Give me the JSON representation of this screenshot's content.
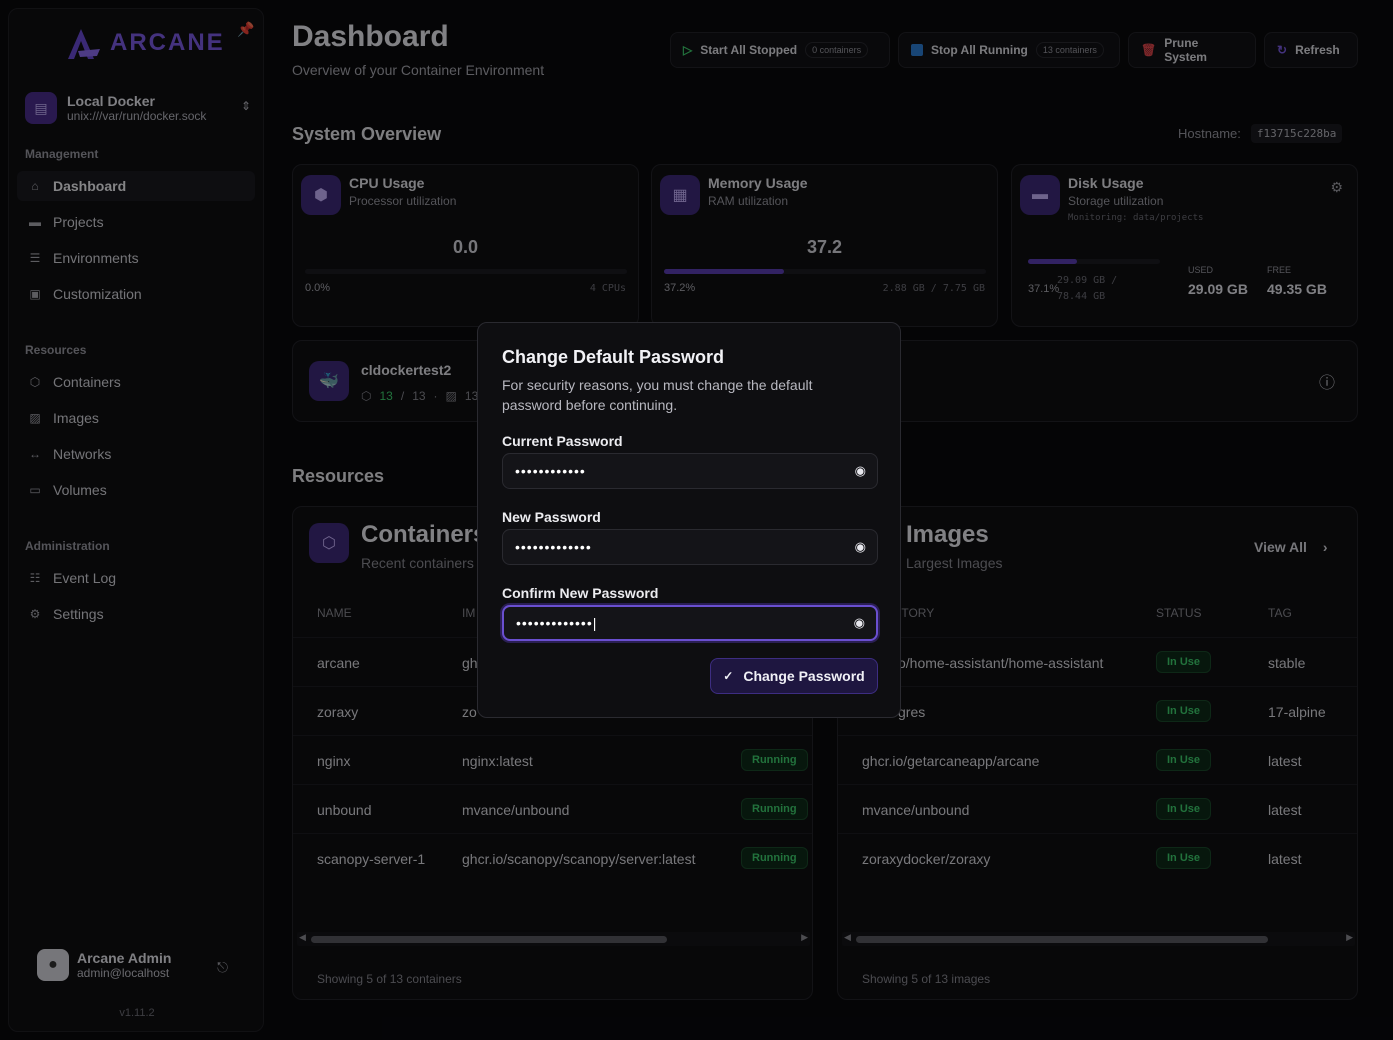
{
  "sidebar": {
    "logo_text": "ARCANE",
    "environment": {
      "name": "Local Docker",
      "path": "unix:///var/run/docker.sock"
    },
    "sections": {
      "management": "Management",
      "resources": "Resources",
      "administration": "Administration"
    },
    "management_items": [
      {
        "label": "Dashboard",
        "icon": "home-icon",
        "active": true
      },
      {
        "label": "Projects",
        "icon": "folder-icon"
      },
      {
        "label": "Environments",
        "icon": "server-icon"
      },
      {
        "label": "Customization",
        "icon": "customize-icon"
      }
    ],
    "resource_items": [
      {
        "label": "Containers",
        "icon": "container-icon"
      },
      {
        "label": "Images",
        "icon": "image-icon"
      },
      {
        "label": "Networks",
        "icon": "network-icon"
      },
      {
        "label": "Volumes",
        "icon": "volume-icon"
      }
    ],
    "admin_items": [
      {
        "label": "Event Log",
        "icon": "log-icon"
      },
      {
        "label": "Settings",
        "icon": "gear-icon"
      }
    ],
    "user": {
      "name": "Arcane Admin",
      "email": "admin@localhost"
    },
    "version": "v1.11.2"
  },
  "header": {
    "title": "Dashboard",
    "subtitle": "Overview of your Container Environment",
    "buttons": {
      "start_stopped": "Start All Stopped",
      "start_count": "0 containers",
      "stop_running": "Stop All Running",
      "stop_count": "13 containers",
      "prune": "Prune System",
      "refresh": "Refresh"
    }
  },
  "overview": {
    "title": "System Overview",
    "hostname_label": "Hostname:",
    "hostname": "f13715c228ba",
    "cpu": {
      "title": "CPU Usage",
      "subtitle": "Processor utilization",
      "value": "0.0",
      "percent_label": "0.0%",
      "detail": "4 CPUs",
      "percent": 0.0
    },
    "memory": {
      "title": "Memory Usage",
      "subtitle": "RAM utilization",
      "value": "37.2",
      "percent_label": "37.2%",
      "detail": "2.88 GB / 7.75 GB",
      "percent": 37.2
    },
    "disk": {
      "title": "Disk Usage",
      "subtitle": "Storage utilization",
      "monitoring": "Monitoring: data/projects",
      "percent_label": "37.1%",
      "detail_1": "29.09 GB /",
      "detail_2": "78.44 GB",
      "used_label": "USED",
      "used": "29.09 GB",
      "free_label": "FREE",
      "free": "49.35 GB",
      "percent": 37.1
    }
  },
  "env_card": {
    "name": "cldockertest2",
    "running": "13",
    "sep": "/",
    "total": "13",
    "dot": "·",
    "images": "13"
  },
  "resources": {
    "title": "Resources",
    "containers": {
      "title": "Containers",
      "subtitle": "Recent containers",
      "col_name": "NAME",
      "col_image": "IM",
      "rows": [
        {
          "name": "arcane",
          "image": "gh",
          "status": ""
        },
        {
          "name": "zoraxy",
          "image": "zo",
          "status": ""
        },
        {
          "name": "nginx",
          "image": "nginx:latest",
          "status": "Running"
        },
        {
          "name": "unbound",
          "image": "mvance/unbound",
          "status": "Running"
        },
        {
          "name": "scanopy-server-1",
          "image": "ghcr.io/scanopy/scanopy/server:latest",
          "status": "Running"
        }
      ],
      "footer": "Showing 5 of 13 containers"
    },
    "images": {
      "title": "Images",
      "subtitle": "Largest Images",
      "view_all": "View All",
      "col_repo": "ITORY",
      "col_status": "STATUS",
      "col_tag": "TAG",
      "rows": [
        {
          "repo": "o/home-assistant/home-assistant",
          "status": "In Use",
          "tag": "stable"
        },
        {
          "repo": "gres",
          "status": "In Use",
          "tag": "17-alpine"
        },
        {
          "repo": "ghcr.io/getarcaneapp/arcane",
          "status": "In Use",
          "tag": "latest"
        },
        {
          "repo": "mvance/unbound",
          "status": "In Use",
          "tag": "latest"
        },
        {
          "repo": "zoraxydocker/zoraxy",
          "status": "In Use",
          "tag": "latest"
        }
      ],
      "footer": "Showing 5 of 13 images"
    }
  },
  "modal": {
    "title": "Change Default Password",
    "description": "For security reasons, you must change the default password before continuing.",
    "current_label": "Current Password",
    "current_value": "••••••••••••",
    "new_label": "New Password",
    "new_value": "•••••••••••••",
    "confirm_label": "Confirm New Password",
    "confirm_value": "•••••••••••••|",
    "submit": "Change Password"
  },
  "colors": {
    "accent": "#7c5ce6",
    "running": "#3ecf6e",
    "prune": "#e5484d"
  }
}
